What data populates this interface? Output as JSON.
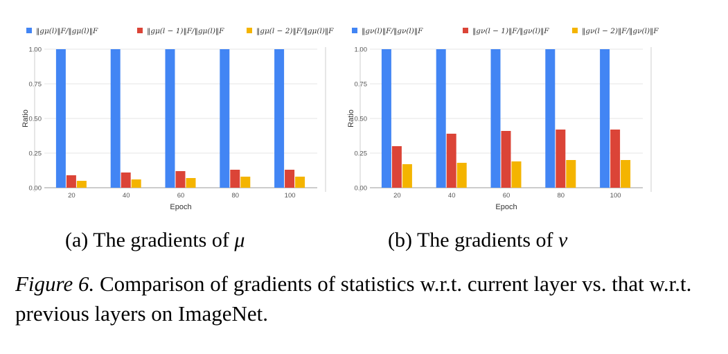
{
  "colors": {
    "current": "#4285F4",
    "prev1": "#DB4437",
    "prev2": "#F4B400",
    "axis_text": "#555555",
    "grid": "#E6E6E6"
  },
  "chart_data": [
    {
      "type": "bar",
      "id": "mu",
      "categories": [
        "20",
        "40",
        "60",
        "80",
        "100"
      ],
      "series": [
        {
          "name": "‖gμ(l)‖F/‖gμ(l)‖F",
          "values": [
            1.0,
            1.0,
            1.0,
            1.0,
            1.0
          ]
        },
        {
          "name": "‖gμ(l − 1)‖F/‖gμ(l)‖F",
          "values": [
            0.09,
            0.11,
            0.12,
            0.13,
            0.13
          ]
        },
        {
          "name": "‖gμ(l − 2)‖F/‖gμ(l)‖F",
          "values": [
            0.05,
            0.06,
            0.07,
            0.08,
            0.08
          ]
        }
      ],
      "xlabel": "Epoch",
      "ylabel": "Ratio",
      "ylim": [
        0,
        1.0
      ],
      "yticks": [
        "0.00",
        "0.25",
        "0.50",
        "0.75",
        "1.00"
      ],
      "legend": "top"
    },
    {
      "type": "bar",
      "id": "nu",
      "categories": [
        "20",
        "40",
        "60",
        "80",
        "100"
      ],
      "series": [
        {
          "name": "‖gν(l)‖F/‖gν(l)‖F",
          "values": [
            1.0,
            1.0,
            1.0,
            1.0,
            1.0
          ]
        },
        {
          "name": "‖gν(l − 1)‖F/‖gν(l)‖F",
          "values": [
            0.3,
            0.39,
            0.41,
            0.42,
            0.42
          ]
        },
        {
          "name": "‖gν(l − 2)‖F/‖gν(l)‖F",
          "values": [
            0.17,
            0.18,
            0.19,
            0.2,
            0.2
          ]
        }
      ],
      "xlabel": "Epoch",
      "ylabel": "Ratio",
      "ylim": [
        0,
        1.0
      ],
      "yticks": [
        "0.00",
        "0.25",
        "0.50",
        "0.75",
        "1.00"
      ],
      "legend": "top"
    }
  ],
  "subcaptions": {
    "a": {
      "prefix": "(a) The gradients of",
      "symbol": "μ"
    },
    "b": {
      "prefix": "(b) The gradients of",
      "symbol": "ν"
    }
  },
  "caption": {
    "label": "Figure 6.",
    "text": "Comparison of gradients of statistics w.r.t. current layer vs. that w.r.t. previous layers on ImageNet."
  }
}
